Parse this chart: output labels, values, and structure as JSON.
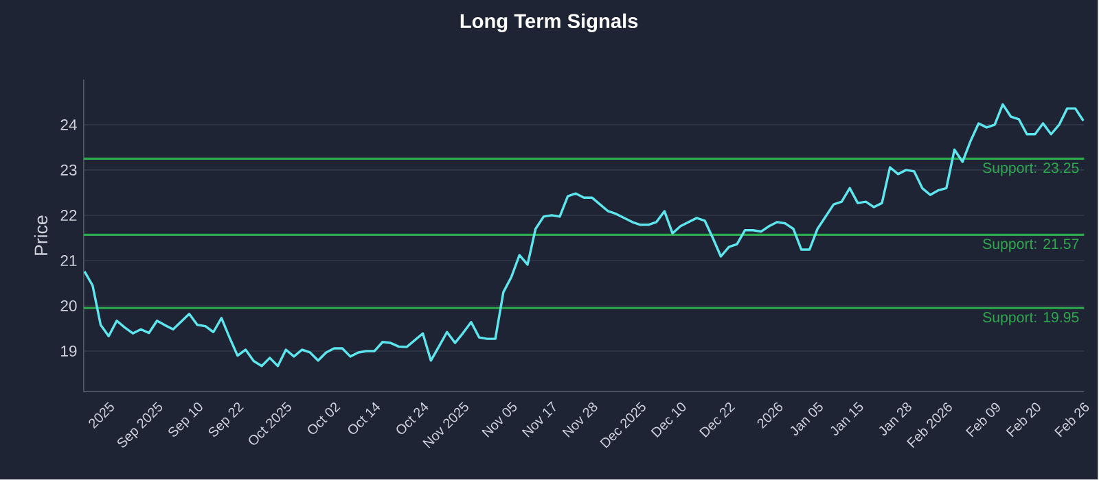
{
  "chart_data": {
    "type": "line",
    "title": "Long Term Signals",
    "ylabel": "Price",
    "categories": [
      null,
      null,
      null,
      "2025",
      null,
      null,
      null,
      null,
      null,
      "Sep 2025",
      null,
      null,
      null,
      null,
      "Sep 10",
      null,
      null,
      null,
      null,
      "Sep 22",
      null,
      null,
      null,
      null,
      null,
      "Oct 2025",
      null,
      null,
      null,
      null,
      null,
      "Oct 02",
      null,
      null,
      null,
      null,
      "Oct 14",
      null,
      null,
      null,
      null,
      null,
      "Oct 24",
      null,
      null,
      null,
      null,
      "Nov 2025",
      null,
      null,
      null,
      null,
      null,
      "Nov 05",
      null,
      null,
      null,
      null,
      "Nov 17",
      null,
      null,
      null,
      null,
      "Nov 28",
      null,
      null,
      null,
      null,
      null,
      "Dec 2025",
      null,
      null,
      null,
      null,
      "Dec 10",
      null,
      null,
      null,
      null,
      null,
      "Dec 22",
      null,
      null,
      null,
      null,
      null,
      "2026",
      null,
      null,
      null,
      null,
      "Jan 05",
      null,
      null,
      null,
      null,
      "Jan 15",
      null,
      null,
      null,
      null,
      null,
      "Jan 28",
      null,
      null,
      null,
      null,
      "Feb 2026",
      null,
      null,
      null,
      null,
      null,
      "Feb 09",
      null,
      null,
      null,
      null,
      "Feb 20",
      null,
      null,
      null,
      null,
      null,
      "Feb 26"
    ],
    "series": [
      {
        "color": "#5de6ee",
        "values": [
          20.76,
          20.45,
          19.58,
          19.33,
          19.67,
          19.52,
          19.39,
          19.48,
          19.4,
          19.67,
          19.57,
          19.48,
          19.65,
          19.82,
          19.58,
          19.55,
          19.42,
          19.73,
          19.3,
          18.9,
          19.03,
          18.78,
          18.67,
          18.85,
          18.67,
          19.03,
          18.88,
          19.03,
          18.97,
          18.79,
          18.97,
          19.06,
          19.06,
          18.88,
          18.97,
          19.0,
          19.0,
          19.2,
          19.18,
          19.1,
          19.09,
          19.24,
          19.39,
          18.79,
          19.1,
          19.42,
          19.18,
          19.4,
          19.64,
          19.3,
          19.27,
          19.27,
          20.3,
          20.64,
          21.12,
          20.91,
          21.7,
          21.97,
          22.0,
          21.97,
          22.42,
          22.48,
          22.39,
          22.39,
          22.24,
          22.09,
          22.03,
          21.94,
          21.85,
          21.79,
          21.79,
          21.85,
          22.09,
          21.6,
          21.76,
          21.85,
          21.94,
          21.88,
          21.5,
          21.09,
          21.3,
          21.36,
          21.67,
          21.67,
          21.64,
          21.76,
          21.85,
          21.82,
          21.7,
          21.24,
          21.24,
          21.7,
          21.97,
          22.24,
          22.3,
          22.6,
          22.27,
          22.3,
          22.18,
          22.27,
          23.06,
          22.91,
          23.0,
          22.97,
          22.6,
          22.45,
          22.55,
          22.6,
          23.45,
          23.18,
          23.64,
          24.03,
          23.94,
          24.0,
          24.45,
          24.18,
          24.12,
          23.79,
          23.79,
          24.03,
          23.79,
          24.0,
          24.36,
          24.36,
          24.09
        ]
      }
    ],
    "ylim": [
      18.1,
      25.0
    ],
    "yticks": [
      19,
      20,
      21,
      22,
      23,
      24
    ],
    "grid": "y",
    "legend": false,
    "marker": "none",
    "line_style": "solid",
    "ref_lines": [
      {
        "axis": "y",
        "value": 23.25,
        "label": "Support: 23.25",
        "color": "#2ea84f"
      },
      {
        "axis": "y",
        "value": 21.57,
        "label": "Support: 21.57",
        "color": "#2ea84f"
      },
      {
        "axis": "y",
        "value": 19.95,
        "label": "Support: 19.95",
        "color": "#2ea84f"
      }
    ]
  }
}
